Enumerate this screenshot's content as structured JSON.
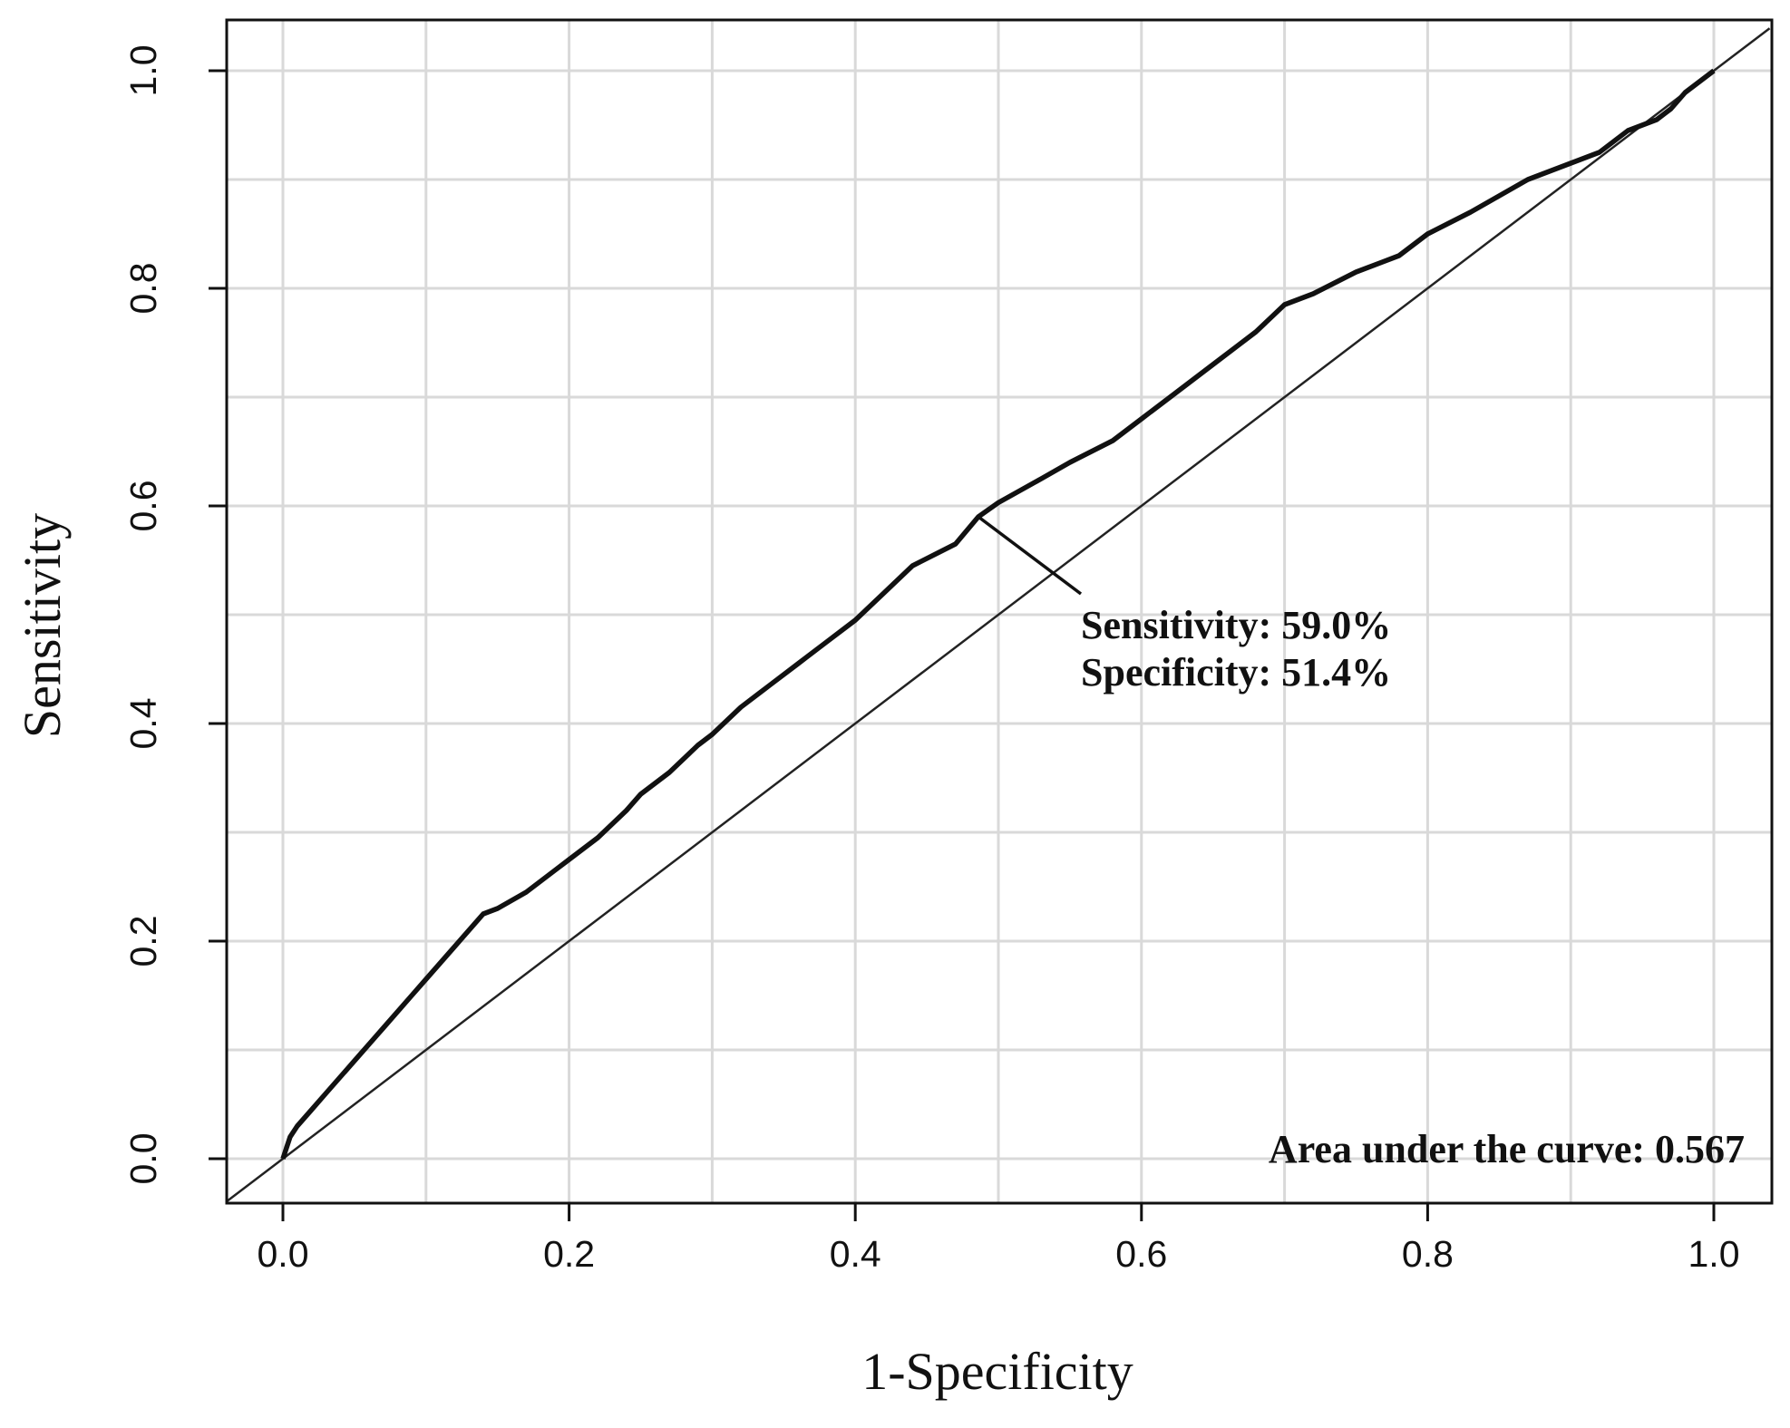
{
  "chart_data": {
    "type": "line",
    "title": "",
    "xlabel": "1-Specificity",
    "ylabel": "Sensitivity",
    "xlim": [
      0.0,
      1.0
    ],
    "ylim": [
      0.0,
      1.0
    ],
    "grid": true,
    "x_ticks": [
      "0.0",
      "0.2",
      "0.4",
      "0.6",
      "0.8",
      "1.0"
    ],
    "y_ticks": [
      "0.0",
      "0.2",
      "0.4",
      "0.6",
      "0.8",
      "1.0"
    ],
    "series": [
      {
        "x": [
          0.0,
          0.005,
          0.01,
          0.02,
          0.03,
          0.05,
          0.07,
          0.09,
          0.1,
          0.12,
          0.14,
          0.15,
          0.17,
          0.19,
          0.2,
          0.22,
          0.24,
          0.25,
          0.27,
          0.29,
          0.3,
          0.32,
          0.34,
          0.36,
          0.38,
          0.4,
          0.42,
          0.44,
          0.47,
          0.486,
          0.5,
          0.53,
          0.55,
          0.58,
          0.6,
          0.62,
          0.65,
          0.68,
          0.7,
          0.72,
          0.75,
          0.78,
          0.8,
          0.83,
          0.85,
          0.87,
          0.9,
          0.92,
          0.94,
          0.96,
          0.97,
          0.98,
          1.0
        ],
        "y": [
          0.0,
          0.02,
          0.03,
          0.045,
          0.06,
          0.09,
          0.12,
          0.15,
          0.165,
          0.195,
          0.225,
          0.23,
          0.245,
          0.265,
          0.275,
          0.295,
          0.32,
          0.335,
          0.355,
          0.38,
          0.39,
          0.415,
          0.435,
          0.455,
          0.475,
          0.495,
          0.52,
          0.545,
          0.565,
          0.59,
          0.603,
          0.625,
          0.64,
          0.66,
          0.68,
          0.7,
          0.73,
          0.76,
          0.785,
          0.795,
          0.815,
          0.83,
          0.85,
          0.87,
          0.885,
          0.9,
          0.915,
          0.925,
          0.945,
          0.955,
          0.965,
          0.98,
          1.0
        ]
      }
    ],
    "reference_line": {
      "x": [
        0.0,
        1.0
      ],
      "y": [
        0.0,
        1.0
      ]
    },
    "cutoff_point": {
      "x": 0.486,
      "y": 0.59
    },
    "annotations": {
      "sensitivity": "Sensitivity: 59.0%",
      "specificity": "Specificity: 51.4%",
      "auc": "Area under the curve: 0.567"
    }
  }
}
